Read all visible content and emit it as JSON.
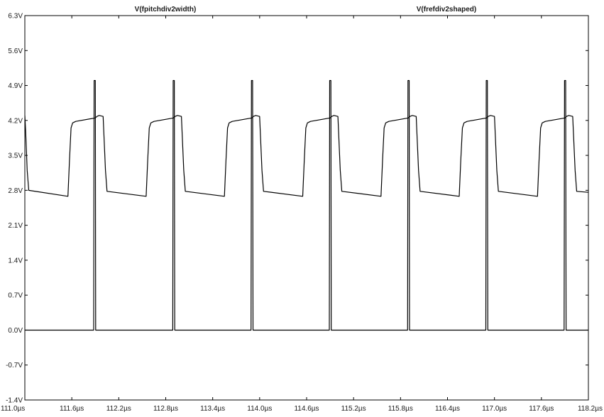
{
  "chart_data": {
    "type": "line",
    "legend_placement": "top",
    "grid": false,
    "background_color": "#ffffff",
    "trace_color": "#000000",
    "xlim": [
      111.0,
      118.2
    ],
    "ylim": [
      -1.4,
      6.3
    ],
    "x_unit": "µs",
    "y_unit": "V",
    "x_ticks": [
      111.0,
      111.6,
      112.2,
      112.8,
      113.4,
      114.0,
      114.6,
      115.2,
      115.8,
      116.4,
      117.0,
      117.6,
      118.2
    ],
    "x_tick_labels": [
      "111.0µs",
      "111.6µs",
      "112.2µs",
      "112.8µs",
      "113.4µs",
      "114.0µs",
      "114.6µs",
      "115.2µs",
      "115.8µs",
      "116.4µs",
      "117.0µs",
      "117.6µs",
      "118.2µs"
    ],
    "y_ticks": [
      6.3,
      5.6,
      4.9,
      4.2,
      3.5,
      2.8,
      2.1,
      1.4,
      0.7,
      0.0,
      -0.7,
      -1.4
    ],
    "y_tick_labels": [
      "6.3V",
      "5.6V",
      "4.9V",
      "4.2V",
      "3.5V",
      "2.8V",
      "2.1V",
      "1.4V",
      "0.7V",
      "0.0V",
      "-0.7V",
      "-1.4V"
    ],
    "series": [
      {
        "name": "V(fpitchdiv2width)",
        "color": "#000000",
        "x": [
          111.0,
          111.01,
          111.03,
          111.05,
          111.55,
          111.57,
          111.59,
          111.61,
          111.65,
          111.9,
          111.92,
          111.95,
          112.0,
          112.03,
          112.05,
          112.55,
          112.57,
          112.59,
          112.61,
          112.65,
          112.9,
          112.92,
          112.95,
          113.0,
          113.03,
          113.05,
          113.55,
          113.57,
          113.59,
          113.61,
          113.65,
          113.9,
          113.92,
          113.95,
          114.0,
          114.03,
          114.05,
          114.55,
          114.57,
          114.59,
          114.61,
          114.65,
          114.9,
          114.92,
          114.95,
          115.0,
          115.03,
          115.05,
          115.55,
          115.57,
          115.59,
          115.61,
          115.65,
          115.9,
          115.92,
          115.95,
          116.0,
          116.03,
          116.05,
          116.55,
          116.57,
          116.59,
          116.61,
          116.65,
          116.9,
          116.92,
          116.95,
          117.0,
          117.03,
          117.05,
          117.55,
          117.57,
          117.59,
          117.61,
          117.65,
          117.9,
          117.92,
          117.95,
          118.0,
          118.03,
          118.05,
          118.2
        ],
        "y": [
          4.3,
          4.0,
          3.2,
          2.8,
          2.68,
          3.4,
          4.05,
          4.15,
          4.18,
          4.25,
          4.28,
          4.3,
          4.28,
          3.2,
          2.78,
          2.68,
          3.4,
          4.05,
          4.15,
          4.18,
          4.25,
          4.28,
          4.3,
          4.28,
          3.2,
          2.78,
          2.68,
          3.4,
          4.05,
          4.15,
          4.18,
          4.25,
          4.28,
          4.3,
          4.28,
          3.2,
          2.78,
          2.68,
          3.4,
          4.05,
          4.15,
          4.18,
          4.25,
          4.28,
          4.3,
          4.28,
          3.2,
          2.78,
          2.68,
          3.4,
          4.05,
          4.15,
          4.18,
          4.25,
          4.28,
          4.3,
          4.28,
          3.2,
          2.78,
          2.68,
          3.4,
          4.05,
          4.15,
          4.18,
          4.25,
          4.28,
          4.3,
          4.28,
          3.2,
          2.78,
          2.68,
          3.4,
          4.05,
          4.15,
          4.18,
          4.25,
          4.28,
          4.3,
          4.28,
          3.2,
          2.78,
          2.76
        ]
      },
      {
        "name": "V(frefdiv2shaped)",
        "color": "#000000",
        "x": [
          111.0,
          111.88,
          111.885,
          111.9,
          111.905,
          112.89,
          112.895,
          112.91,
          112.915,
          113.89,
          113.895,
          113.91,
          113.915,
          114.89,
          114.895,
          114.91,
          114.915,
          115.89,
          115.895,
          115.91,
          115.915,
          116.89,
          116.895,
          116.91,
          116.915,
          117.89,
          117.895,
          117.91,
          117.915,
          118.2
        ],
        "y": [
          0.0,
          0.0,
          5.0,
          5.0,
          0.0,
          0.0,
          5.0,
          5.0,
          0.0,
          0.0,
          5.0,
          5.0,
          0.0,
          0.0,
          5.0,
          5.0,
          0.0,
          0.0,
          5.0,
          5.0,
          0.0,
          0.0,
          5.0,
          5.0,
          0.0,
          0.0,
          5.0,
          5.0,
          0.0,
          0.0
        ]
      }
    ]
  }
}
